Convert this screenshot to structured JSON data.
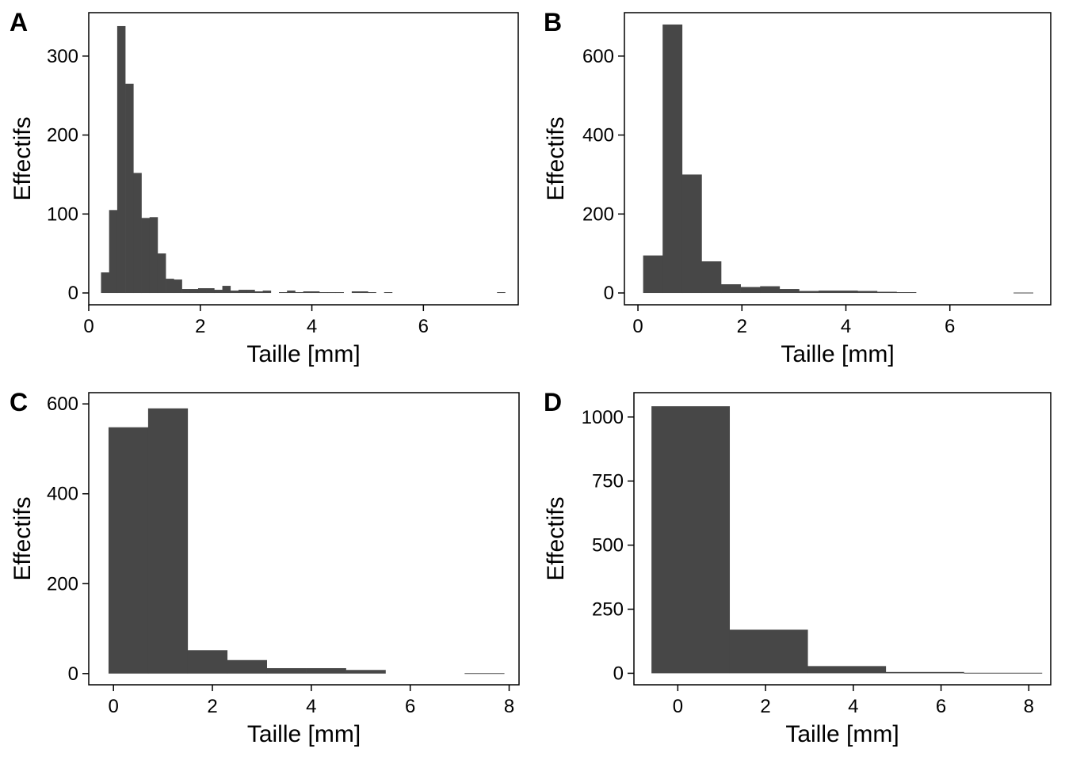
{
  "panels": [
    {
      "letter": "A"
    },
    {
      "letter": "B"
    },
    {
      "letter": "C"
    },
    {
      "letter": "D"
    }
  ],
  "colors": {
    "bar": "#474747",
    "axis": "#000000",
    "background": "#ffffff"
  },
  "chart_data": [
    {
      "type": "bar",
      "xlabel": "Taille  [mm]",
      "ylabel": "Effectifs",
      "xlim": [
        0,
        7.7
      ],
      "ylim": [
        -15,
        355
      ],
      "xticks": [
        0,
        2,
        4,
        6
      ],
      "yticks": [
        0,
        100,
        200,
        300
      ],
      "bin_width": 0.145,
      "bins": [
        [
          0.22,
          26
        ],
        [
          0.365,
          105
        ],
        [
          0.51,
          338
        ],
        [
          0.655,
          265
        ],
        [
          0.8,
          152
        ],
        [
          0.945,
          95
        ],
        [
          1.09,
          96
        ],
        [
          1.235,
          50
        ],
        [
          1.38,
          18
        ],
        [
          1.525,
          17
        ],
        [
          1.67,
          5
        ],
        [
          1.815,
          5
        ],
        [
          1.96,
          6
        ],
        [
          2.105,
          6
        ],
        [
          2.25,
          4
        ],
        [
          2.395,
          9
        ],
        [
          2.54,
          3
        ],
        [
          2.685,
          4
        ],
        [
          2.83,
          4
        ],
        [
          2.975,
          2
        ],
        [
          3.12,
          3
        ],
        [
          3.41,
          1
        ],
        [
          3.555,
          3
        ],
        [
          3.7,
          1
        ],
        [
          3.845,
          2
        ],
        [
          3.99,
          2
        ],
        [
          4.135,
          1
        ],
        [
          4.28,
          1
        ],
        [
          4.425,
          1
        ],
        [
          4.715,
          2
        ],
        [
          4.86,
          2
        ],
        [
          5.005,
          1
        ],
        [
          5.295,
          1
        ],
        [
          7.32,
          1
        ]
      ]
    },
    {
      "type": "bar",
      "xlabel": "Taille  [mm]",
      "ylabel": "Effectifs",
      "xlim": [
        -0.26,
        7.94
      ],
      "ylim": [
        -30,
        710
      ],
      "xticks": [
        0,
        2,
        4,
        6
      ],
      "yticks": [
        0,
        200,
        400,
        600
      ],
      "bin_width": 0.375,
      "bins": [
        [
          0.1,
          95
        ],
        [
          0.475,
          680
        ],
        [
          0.85,
          300
        ],
        [
          1.225,
          80
        ],
        [
          1.6,
          22
        ],
        [
          1.975,
          15
        ],
        [
          2.35,
          17
        ],
        [
          2.725,
          10
        ],
        [
          3.1,
          5
        ],
        [
          3.475,
          6
        ],
        [
          3.85,
          6
        ],
        [
          4.225,
          5
        ],
        [
          4.6,
          3
        ],
        [
          4.975,
          2
        ],
        [
          7.225,
          1
        ]
      ]
    },
    {
      "type": "bar",
      "xlabel": "Taille  [mm]",
      "ylabel": "Effectifs",
      "xlim": [
        -0.5,
        8.2
      ],
      "ylim": [
        -25,
        625
      ],
      "xticks": [
        0,
        2,
        4,
        6,
        8
      ],
      "yticks": [
        0,
        200,
        400,
        600
      ],
      "bin_width": 0.8,
      "bins": [
        [
          -0.1,
          548
        ],
        [
          0.7,
          590
        ],
        [
          1.5,
          52
        ],
        [
          2.3,
          30
        ],
        [
          3.1,
          12
        ],
        [
          3.9,
          12
        ],
        [
          4.7,
          8
        ],
        [
          7.1,
          1
        ]
      ]
    },
    {
      "type": "bar",
      "xlabel": "Taille  [mm]",
      "ylabel": "Effectifs",
      "xlim": [
        -1.0,
        8.5
      ],
      "ylim": [
        -45,
        1095
      ],
      "xticks": [
        0,
        2,
        4,
        6,
        8
      ],
      "yticks": [
        0,
        250,
        500,
        750,
        1000
      ],
      "yticklabels": [
        "0",
        "250",
        "500",
        "750",
        "1000"
      ],
      "bin_width": 1.78,
      "bins": [
        [
          -0.6,
          1042
        ],
        [
          1.18,
          170
        ],
        [
          2.96,
          28
        ],
        [
          4.74,
          5
        ],
        [
          6.52,
          2
        ]
      ]
    }
  ]
}
